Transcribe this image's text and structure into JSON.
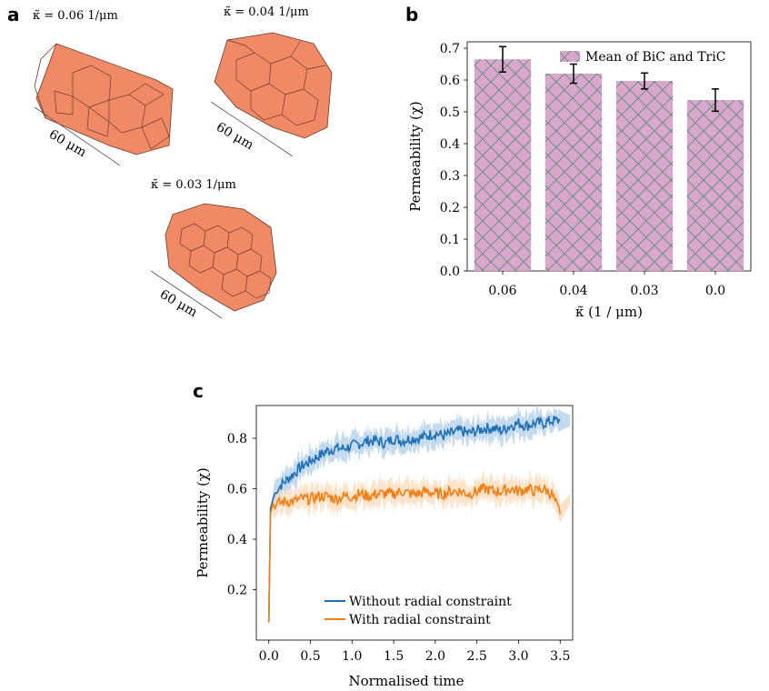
{
  "panel_a": {
    "letter": "a",
    "tubes": [
      {
        "kappa_label": "κ̃ = 0.06 1/μm",
        "length_label": "60 μm"
      },
      {
        "kappa_label": "κ̃ = 0.04 1/μm",
        "length_label": "60 μm"
      },
      {
        "kappa_label": "κ̃ = 0.03 1/μm",
        "length_label": "60 μm"
      }
    ],
    "tube_color": "#f08a66",
    "edge_color": "#6b3a2a"
  },
  "panel_b": {
    "letter": "b"
  },
  "panel_c": {
    "letter": "c"
  },
  "chart_data": [
    {
      "type": "bar",
      "title": "",
      "xlabel": "κ̃ (1 / μm)",
      "ylabel": "Permeability (χ)",
      "categories": [
        "0.06",
        "0.04",
        "0.03",
        "0.0"
      ],
      "series": [
        {
          "name": "Mean of BiC and TriC",
          "values": [
            0.665,
            0.62,
            0.597,
            0.537
          ],
          "errors": [
            0.04,
            0.03,
            0.025,
            0.035
          ]
        }
      ],
      "ylim": [
        0,
        0.72
      ],
      "yticks": [
        "0.0",
        "0.1",
        "0.2",
        "0.3",
        "0.4",
        "0.5",
        "0.6",
        "0.7"
      ],
      "bar_color": "#d9a6cc",
      "hatch_color": "#5f8a7a",
      "grid": false,
      "legend_position": "top-right"
    },
    {
      "type": "line",
      "title": "",
      "xlabel": "Normalised time",
      "ylabel": "Permeability (χ)",
      "xlim": [
        -0.15,
        3.65
      ],
      "ylim": [
        0.0,
        0.93
      ],
      "xticks": [
        "0.0",
        "0.5",
        "1.0",
        "1.5",
        "2.0",
        "2.5",
        "3.0",
        "3.5"
      ],
      "yticks": [
        "0.2",
        "0.4",
        "0.6",
        "0.8"
      ],
      "legend_position": "bottom-center",
      "series": [
        {
          "name": "Without radial constraint",
          "color": "#1f6fb4",
          "band_color": "#a9cbe8",
          "x": [
            0.0,
            0.02,
            0.05,
            0.1,
            0.2,
            0.3,
            0.4,
            0.5,
            0.6,
            0.7,
            0.8,
            0.9,
            1.0,
            1.1,
            1.2,
            1.3,
            1.4,
            1.5,
            1.6,
            1.7,
            1.8,
            1.9,
            2.0,
            2.1,
            2.2,
            2.3,
            2.4,
            2.5,
            2.6,
            2.7,
            2.8,
            2.9,
            3.0,
            3.1,
            3.2,
            3.3,
            3.4,
            3.5
          ],
          "y": [
            0.07,
            0.52,
            0.56,
            0.6,
            0.63,
            0.66,
            0.69,
            0.71,
            0.73,
            0.75,
            0.76,
            0.76,
            0.77,
            0.78,
            0.79,
            0.79,
            0.78,
            0.8,
            0.79,
            0.8,
            0.8,
            0.81,
            0.82,
            0.81,
            0.82,
            0.83,
            0.82,
            0.83,
            0.84,
            0.84,
            0.83,
            0.85,
            0.86,
            0.85,
            0.86,
            0.86,
            0.87,
            0.87
          ]
        },
        {
          "name": "With radial constraint",
          "color": "#f07f16",
          "band_color": "#fbd7b3",
          "x": [
            0.0,
            0.02,
            0.05,
            0.1,
            0.2,
            0.3,
            0.4,
            0.5,
            0.6,
            0.7,
            0.8,
            0.9,
            1.0,
            1.1,
            1.2,
            1.3,
            1.4,
            1.5,
            1.6,
            1.7,
            1.8,
            1.9,
            2.0,
            2.1,
            2.2,
            2.3,
            2.4,
            2.5,
            2.6,
            2.7,
            2.8,
            2.9,
            3.0,
            3.1,
            3.2,
            3.3,
            3.4,
            3.5
          ],
          "y": [
            0.07,
            0.5,
            0.54,
            0.54,
            0.55,
            0.55,
            0.56,
            0.56,
            0.57,
            0.57,
            0.56,
            0.57,
            0.57,
            0.58,
            0.57,
            0.58,
            0.58,
            0.58,
            0.59,
            0.58,
            0.58,
            0.59,
            0.58,
            0.58,
            0.59,
            0.59,
            0.58,
            0.59,
            0.6,
            0.59,
            0.59,
            0.6,
            0.59,
            0.6,
            0.59,
            0.6,
            0.58,
            0.5
          ]
        }
      ]
    }
  ]
}
